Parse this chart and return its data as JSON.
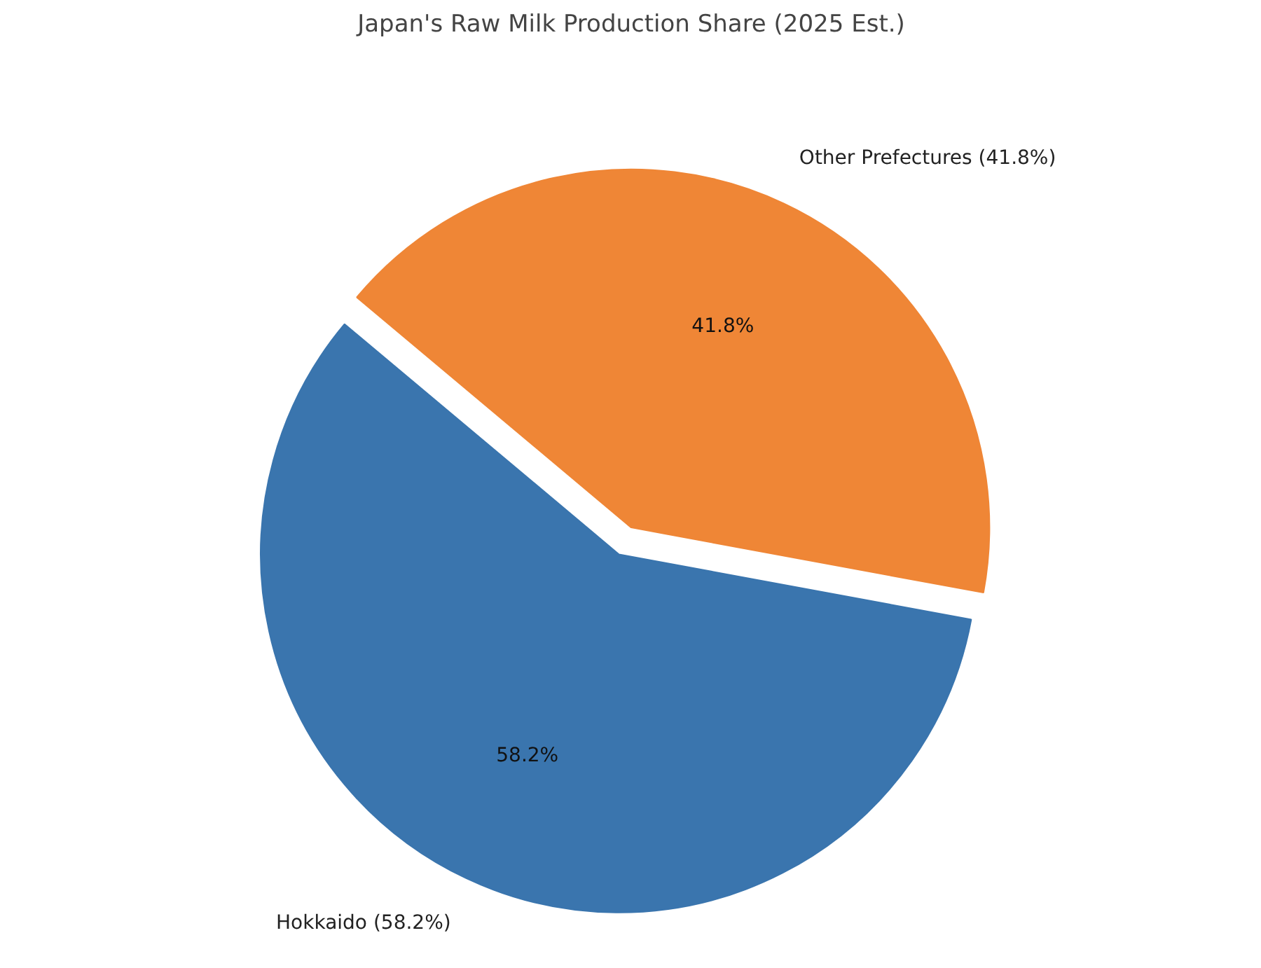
{
  "chart_data": {
    "type": "pie",
    "title": "Japan's Raw Milk Production Share (2025 Est.)",
    "categories": [
      "Hokkaido (58.2%)",
      "Other Prefectures (41.8%)"
    ],
    "values": [
      58.2,
      41.8
    ],
    "colors": [
      "#3a75ae",
      "#ef8636"
    ],
    "value_labels": [
      "58.2%",
      "41.8%"
    ],
    "legend": false
  }
}
